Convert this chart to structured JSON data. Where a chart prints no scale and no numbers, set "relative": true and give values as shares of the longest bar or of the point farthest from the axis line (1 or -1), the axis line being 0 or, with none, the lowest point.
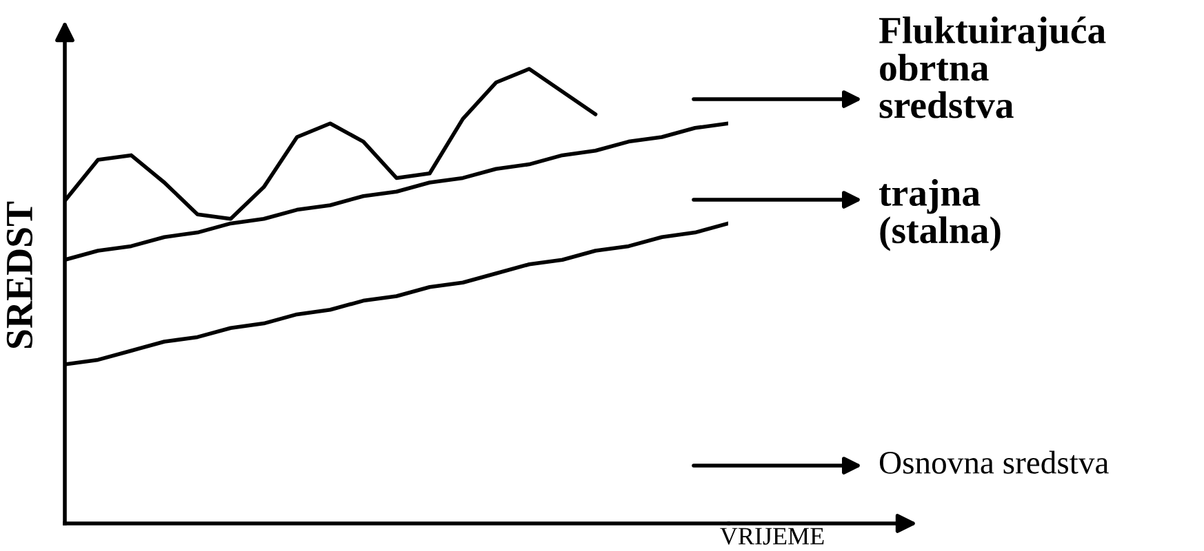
{
  "chart_data": {
    "type": "line",
    "relative": true,
    "xlabel": "VRIJEME",
    "ylabel": "SREDST",
    "categories": [
      null,
      null,
      null,
      null,
      null,
      null,
      null,
      null,
      null,
      null,
      null,
      null,
      null,
      null,
      null,
      null,
      null,
      null,
      null,
      null,
      null
    ],
    "series": [
      {
        "color": "#000000",
        "values": [
          0.71,
          0.8,
          0.81,
          0.75,
          0.68,
          0.67,
          0.74,
          0.85,
          0.88,
          0.84,
          0.76,
          0.77,
          0.89,
          0.97,
          1.0,
          0.95,
          0.9,
          null,
          null,
          null,
          null
        ]
      },
      {
        "color": "#000000",
        "values": [
          0.58,
          0.6,
          0.61,
          0.63,
          0.64,
          0.66,
          0.67,
          0.69,
          0.7,
          0.72,
          0.73,
          0.75,
          0.76,
          0.78,
          0.79,
          0.81,
          0.82,
          0.84,
          0.85,
          0.87,
          0.88
        ]
      },
      {
        "color": "#000000",
        "values": [
          0.35,
          0.36,
          0.38,
          0.4,
          0.41,
          0.43,
          0.44,
          0.46,
          0.47,
          0.49,
          0.5,
          0.52,
          0.53,
          0.55,
          0.57,
          0.58,
          0.6,
          0.61,
          0.63,
          0.64,
          0.66
        ]
      }
    ],
    "annotations": [
      "Fluktuirajuća obrtna sredstva",
      "trajna (stalna)",
      "Osnovna sredstva"
    ],
    "marker": "none",
    "line_style": "solid"
  }
}
